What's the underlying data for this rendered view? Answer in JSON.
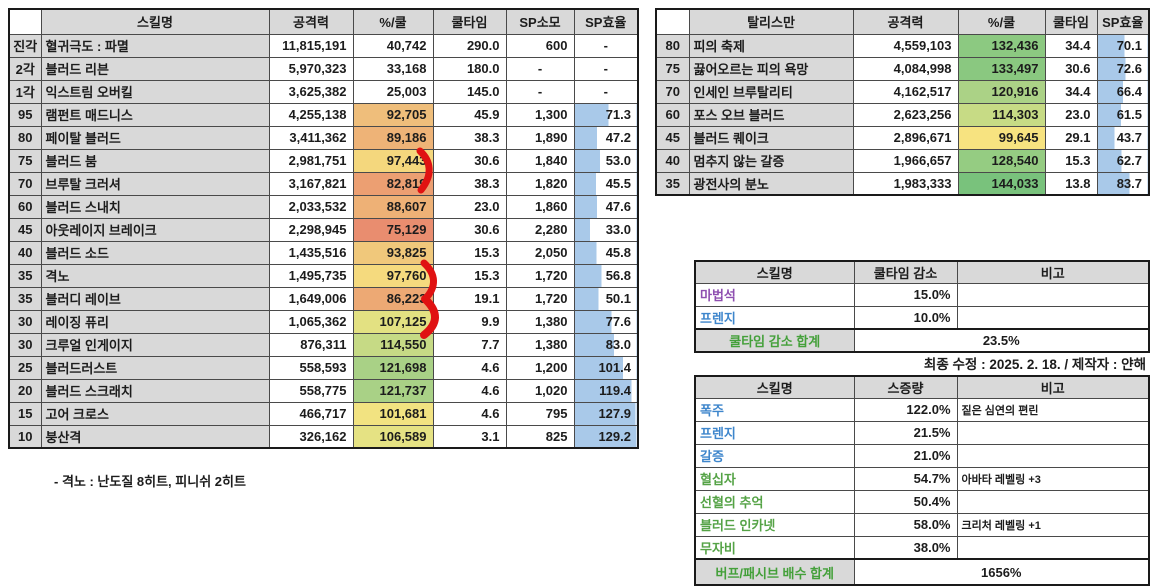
{
  "skill_table": {
    "headers": [
      "",
      "스킬명",
      "공격력",
      "%/쿨",
      "쿨타임",
      "SP소모",
      "SP효율"
    ],
    "rows": [
      {
        "level": "진각",
        "name": "혈귀극도 : 파멸",
        "atk": "11,815,191",
        "pct": "40,742",
        "pct_color": "#FFFFFF",
        "cd": "290.0",
        "sp": "600",
        "eff": "-",
        "eff_val": null
      },
      {
        "level": "2각",
        "name": "블러드 리븐",
        "atk": "5,970,323",
        "pct": "33,168",
        "pct_color": "#FFFFFF",
        "cd": "180.0",
        "sp": "-",
        "eff": "-",
        "eff_val": null
      },
      {
        "level": "1각",
        "name": "익스트림 오버킬",
        "atk": "3,625,382",
        "pct": "25,003",
        "pct_color": "#FFFFFF",
        "cd": "145.0",
        "sp": "-",
        "eff": "-",
        "eff_val": null
      },
      {
        "level": "95",
        "name": "램펀트 매드니스",
        "atk": "4,255,138",
        "pct": "92,705",
        "pct_color": "#EFBE7B",
        "cd": "45.9",
        "sp": "1,300",
        "eff": "71.3",
        "eff_val": 71.3
      },
      {
        "level": "80",
        "name": "페이탈 블러드",
        "atk": "3,411,362",
        "pct": "89,186",
        "pct_color": "#EEB377",
        "cd": "38.3",
        "sp": "1,890",
        "eff": "47.2",
        "eff_val": 47.2
      },
      {
        "level": "75",
        "name": "블러드 붐",
        "atk": "2,981,751",
        "pct": "97,443",
        "pct_color": "#F4D77D",
        "cd": "30.6",
        "sp": "1,840",
        "eff": "53.0",
        "eff_val": 53.0
      },
      {
        "level": "70",
        "name": "브루탈 크러셔",
        "atk": "3,167,821",
        "pct": "82,819",
        "pct_color": "#EC9F72",
        "cd": "38.3",
        "sp": "1,820",
        "eff": "45.5",
        "eff_val": 45.5
      },
      {
        "level": "60",
        "name": "블러드 스내치",
        "atk": "2,033,532",
        "pct": "88,607",
        "pct_color": "#EEB176",
        "cd": "23.0",
        "sp": "1,860",
        "eff": "47.6",
        "eff_val": 47.6
      },
      {
        "level": "45",
        "name": "아웃레이지 브레이크",
        "atk": "2,298,945",
        "pct": "75,129",
        "pct_color": "#E98D6F",
        "cd": "30.6",
        "sp": "2,280",
        "eff": "33.0",
        "eff_val": 33.0
      },
      {
        "level": "40",
        "name": "블러드 소드",
        "atk": "1,435,516",
        "pct": "93,825",
        "pct_color": "#F0C87B",
        "cd": "15.3",
        "sp": "2,050",
        "eff": "45.8",
        "eff_val": 45.8
      },
      {
        "level": "35",
        "name": "격노",
        "atk": "1,495,735",
        "pct": "97,760",
        "pct_color": "#F5DA7E",
        "cd": "15.3",
        "sp": "1,720",
        "eff": "56.8",
        "eff_val": 56.8
      },
      {
        "level": "35",
        "name": "블러디 레이브",
        "atk": "1,649,006",
        "pct": "86,223",
        "pct_color": "#EDA974",
        "cd": "19.1",
        "sp": "1,720",
        "eff": "50.1",
        "eff_val": 50.1
      },
      {
        "level": "30",
        "name": "레이징 퓨리",
        "atk": "1,065,362",
        "pct": "107,125",
        "pct_color": "#E3E182",
        "cd": "9.9",
        "sp": "1,380",
        "eff": "77.6",
        "eff_val": 77.6
      },
      {
        "level": "30",
        "name": "크루얼 인게이지",
        "atk": "876,311",
        "pct": "114,550",
        "pct_color": "#C6DA85",
        "cd": "7.7",
        "sp": "1,380",
        "eff": "83.0",
        "eff_val": 83.0
      },
      {
        "level": "25",
        "name": "블러드러스트",
        "atk": "558,593",
        "pct": "121,698",
        "pct_color": "#A9D186",
        "cd": "4.6",
        "sp": "1,200",
        "eff": "101.4",
        "eff_val": 101.4
      },
      {
        "level": "20",
        "name": "블러드 스크래치",
        "atk": "558,775",
        "pct": "121,737",
        "pct_color": "#A9D186",
        "cd": "4.6",
        "sp": "1,020",
        "eff": "119.4",
        "eff_val": 119.4
      },
      {
        "level": "15",
        "name": "고어 크로스",
        "atk": "466,717",
        "pct": "101,681",
        "pct_color": "#F2E381",
        "cd": "4.6",
        "sp": "795",
        "eff": "127.9",
        "eff_val": 127.9
      },
      {
        "level": "10",
        "name": "붕산격",
        "atk": "326,162",
        "pct": "106,589",
        "pct_color": "#E5E283",
        "cd": "3.1",
        "sp": "825",
        "eff": "129.2",
        "eff_val": 129.2
      }
    ],
    "note": "- 격노 : 난도질 8히트, 피니쉬 2히트"
  },
  "talisman_table": {
    "headers": [
      "",
      "탈리스만",
      "공격력",
      "%/쿨",
      "쿨타임",
      "SP효율"
    ],
    "rows": [
      {
        "level": "80",
        "name": "피의 축제",
        "atk": "4,559,103",
        "pct": "132,436",
        "pct_color": "#8CC981",
        "cd": "34.4",
        "eff": "70.1",
        "eff_val": 70.1
      },
      {
        "level": "75",
        "name": "끓어오르는 피의 욕망",
        "atk": "4,084,998",
        "pct": "133,497",
        "pct_color": "#8AC880",
        "cd": "30.6",
        "eff": "72.6",
        "eff_val": 72.6
      },
      {
        "level": "70",
        "name": "인세인 브루탈리티",
        "atk": "4,162,517",
        "pct": "120,916",
        "pct_color": "#ABD286",
        "cd": "34.4",
        "eff": "66.4",
        "eff_val": 66.4
      },
      {
        "level": "60",
        "name": "포스 오브 블러드",
        "atk": "2,623,256",
        "pct": "114,303",
        "pct_color": "#C7DB85",
        "cd": "23.0",
        "eff": "61.5",
        "eff_val": 61.5
      },
      {
        "level": "45",
        "name": "블러드 퀘이크",
        "atk": "2,896,671",
        "pct": "99,645",
        "pct_color": "#F7E380",
        "cd": "29.1",
        "eff": "43.7",
        "eff_val": 43.7
      },
      {
        "level": "40",
        "name": "멈추지 않는 갈증",
        "atk": "1,966,657",
        "pct": "128,540",
        "pct_color": "#95CC82",
        "cd": "15.3",
        "eff": "62.7",
        "eff_val": 62.7
      },
      {
        "level": "35",
        "name": "광전사의 분노",
        "atk": "1,983,333",
        "pct": "144,033",
        "pct_color": "#79C27C",
        "cd": "13.8",
        "eff": "83.7",
        "eff_val": 83.7
      }
    ]
  },
  "cooldown_table": {
    "headers": [
      "스킬명",
      "쿨타임 감소",
      "비고"
    ],
    "rows": [
      {
        "name": "마법석",
        "name_color": "#8E4FB0",
        "value": "15.0%",
        "note": ""
      },
      {
        "name": "프렌지",
        "name_color": "#3E86CC",
        "value": "10.0%",
        "note": ""
      }
    ],
    "footer": {
      "label": "쿨타임 감소 합계",
      "value": "23.5%"
    }
  },
  "buff_table": {
    "headers": [
      "스킬명",
      "스증량",
      "비고"
    ],
    "rows": [
      {
        "name": "폭주",
        "name_color": "#3E86CC",
        "value": "122.0%",
        "note": "짙은 심연의 편린"
      },
      {
        "name": "프렌지",
        "name_color": "#3E86CC",
        "value": "21.5%",
        "note": ""
      },
      {
        "name": "갈증",
        "name_color": "#3E86CC",
        "value": "21.0%",
        "note": ""
      },
      {
        "name": "혈십자",
        "name_color": "#55A346",
        "value": "54.7%",
        "note": "아바타 레벨링 +3"
      },
      {
        "name": "선혈의 추억",
        "name_color": "#55A346",
        "value": "50.4%",
        "note": ""
      },
      {
        "name": "블러드 인카넷",
        "name_color": "#55A346",
        "value": "58.0%",
        "note": "크리처 레벨링 +1"
      },
      {
        "name": "무자비",
        "name_color": "#55A346",
        "value": "38.0%",
        "note": ""
      }
    ],
    "footer": {
      "label": "버프/패시브 배수 합계",
      "value": "1656%"
    }
  },
  "meta": {
    "last_updated": "최종 수정 : 2025. 2. 18. / 제작자 : 얀해"
  },
  "colors": {
    "header_bg": "#D9D9D9",
    "bar_blue": "#A9C9E9",
    "footer_green": "#44A03A",
    "annotation_red": "#E01212"
  },
  "scales": {
    "eff_bar_max": 130
  }
}
